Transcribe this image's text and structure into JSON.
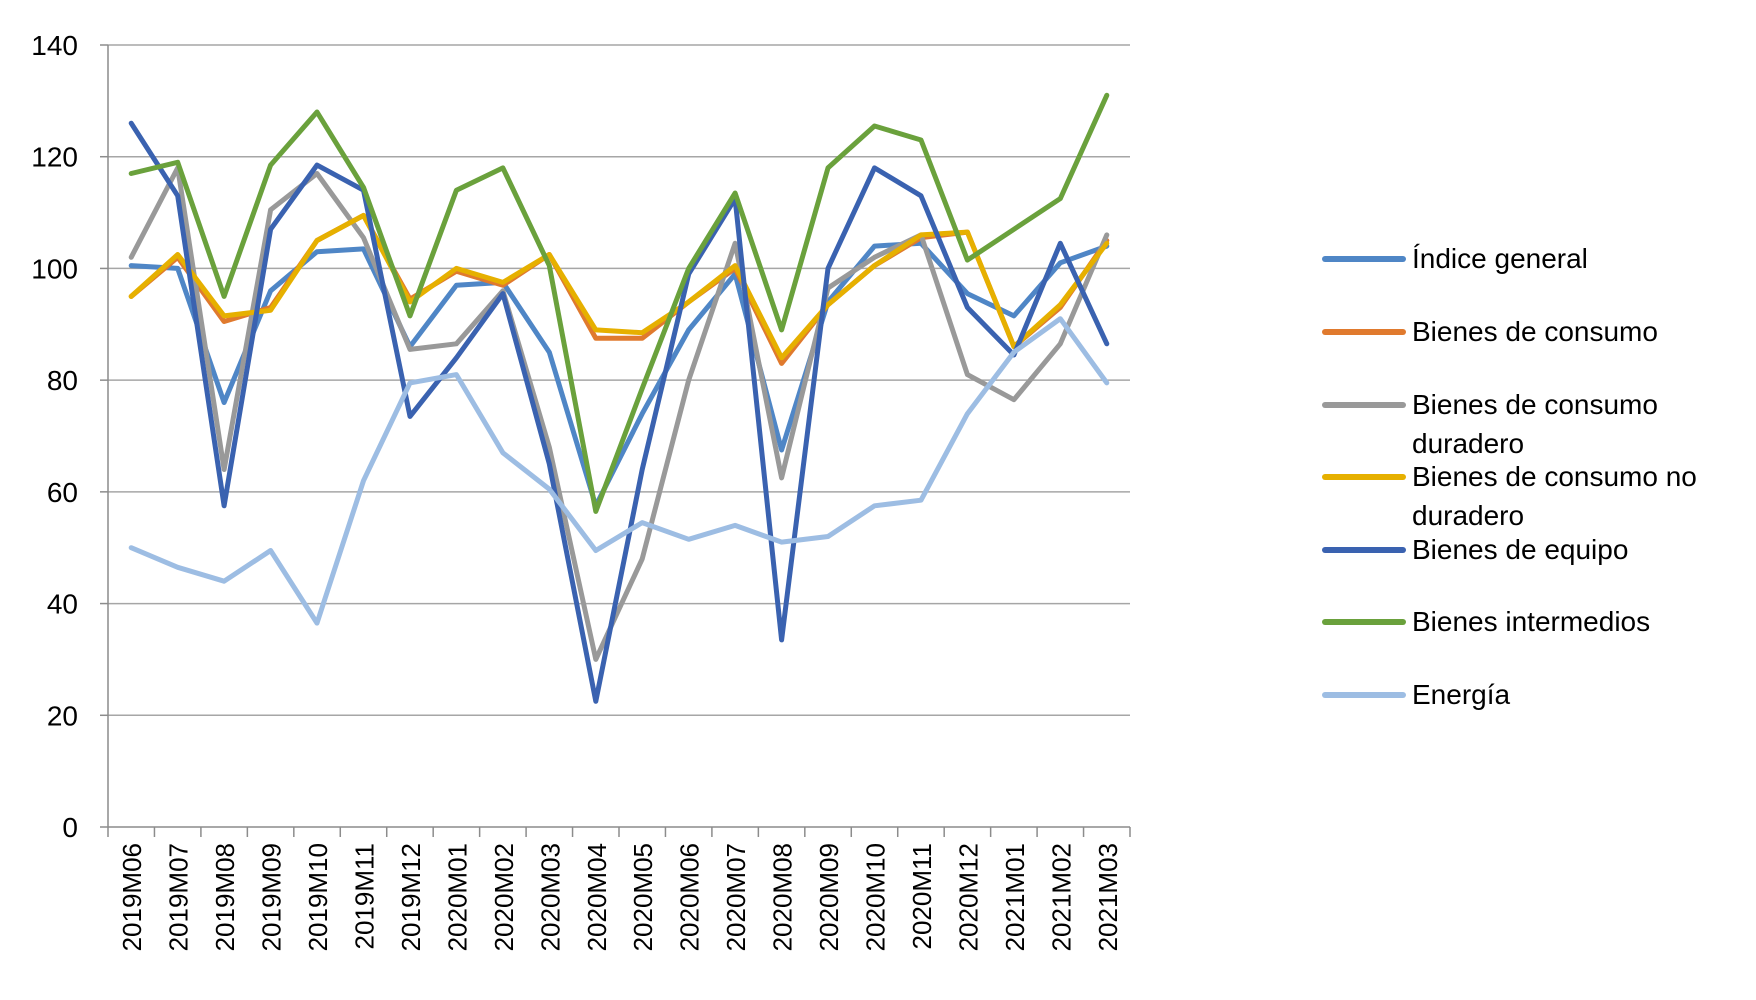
{
  "chart_data": {
    "type": "line",
    "title": "",
    "xlabel": "",
    "ylabel": "",
    "ylim": [
      0,
      140
    ],
    "yticks": [
      "0",
      "20",
      "40",
      "60",
      "80",
      "100",
      "120",
      "140"
    ],
    "grid": "horizontal",
    "legend_position": "right",
    "categories": [
      "2019M06",
      "2019M07",
      "2019M08",
      "2019M09",
      "2019M10",
      "2019M11",
      "2019M12",
      "2020M01",
      "2020M02",
      "2020M03",
      "2020M04",
      "2020M05",
      "2020M06",
      "2020M07",
      "2020M08",
      "2020M09",
      "2020M10",
      "2020M11",
      "2020M12",
      "2021M01",
      "2021M02",
      "2021M03"
    ],
    "series": [
      {
        "name": "Índice general",
        "color": "#4f86c6",
        "values": [
          100.5,
          100,
          76,
          96,
          103,
          103.5,
          86,
          97,
          97.5,
          85,
          57.5,
          74,
          89,
          99,
          67.5,
          94,
          104,
          104.5,
          95.5,
          91.5,
          101,
          104
        ]
      },
      {
        "name": "Bienes de consumo",
        "color": "#e07a2e",
        "values": [
          95,
          102,
          90.5,
          93,
          105,
          109.5,
          94.5,
          99.5,
          97,
          102.5,
          87.5,
          87.5,
          94,
          100,
          83,
          93.5,
          100.5,
          105.5,
          106.5,
          86,
          93,
          105
        ]
      },
      {
        "name": "Bienes de consumo duradero",
        "color": "#999999",
        "values": [
          102,
          118,
          64,
          110.5,
          117,
          105.5,
          85.5,
          86.5,
          96,
          68,
          30,
          48,
          80,
          104.5,
          62.5,
          96.5,
          102,
          106,
          81,
          76.5,
          86.5,
          106
        ]
      },
      {
        "name": "Bienes de consumo no duradero",
        "color": "#e6b000",
        "values": [
          95,
          102.5,
          91.5,
          92.5,
          105,
          109.5,
          94,
          100,
          97.5,
          102.5,
          89,
          88.5,
          94,
          100.5,
          84,
          93.5,
          100.5,
          106,
          106.5,
          86,
          93.5,
          104.5
        ]
      },
      {
        "name": "Bienes de equipo",
        "color": "#3a62b0",
        "values": [
          126,
          113,
          57.5,
          107,
          118.5,
          114,
          73.5,
          84,
          95.5,
          65,
          22.5,
          64,
          99,
          112.5,
          33.5,
          100,
          118,
          113,
          93,
          84.5,
          104.5,
          86.5
        ]
      },
      {
        "name": "Bienes intermedios",
        "color": "#6aa13c",
        "values": [
          117,
          119,
          95,
          118.5,
          128,
          114.5,
          91.5,
          114,
          118,
          100.5,
          56.5,
          78.5,
          100,
          113.5,
          89,
          118,
          125.5,
          123,
          101.5,
          107,
          112.5,
          131
        ]
      },
      {
        "name": "Energía",
        "color": "#9dbde3",
        "values": [
          50,
          46.5,
          44,
          49.5,
          36.5,
          62,
          79.5,
          81,
          67,
          60.5,
          49.5,
          54.5,
          51.5,
          54,
          51,
          52,
          57.5,
          58.5,
          74,
          85,
          91,
          79.5
        ]
      }
    ]
  },
  "legend": {
    "items": [
      {
        "lines": [
          "Índice general"
        ]
      },
      {
        "lines": [
          "Bienes de consumo"
        ]
      },
      {
        "lines": [
          "Bienes de consumo",
          "duradero"
        ]
      },
      {
        "lines": [
          "Bienes de consumo no",
          "duradero"
        ]
      },
      {
        "lines": [
          "Bienes de equipo"
        ]
      },
      {
        "lines": [
          "Bienes intermedios"
        ]
      },
      {
        "lines": [
          "Energía"
        ]
      }
    ]
  }
}
